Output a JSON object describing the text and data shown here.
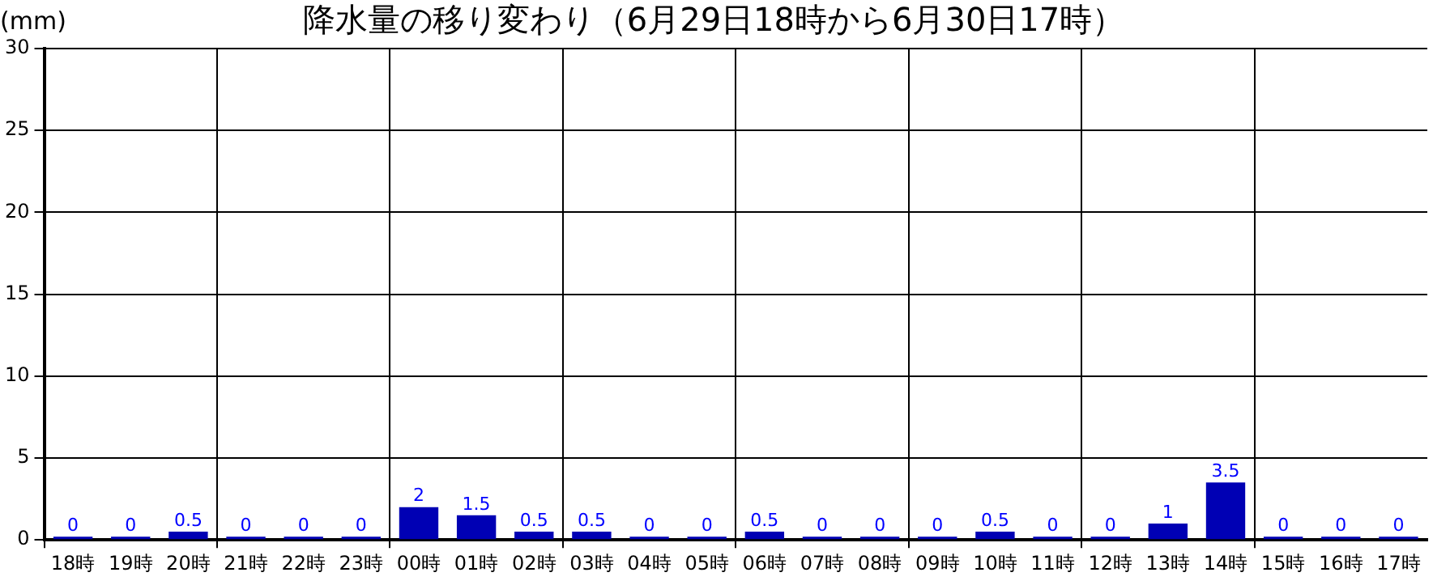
{
  "chart_data": {
    "type": "bar",
    "title": "降水量の移り変わり（6月29日18時から6月30日17時）",
    "ylabel": "(mm)",
    "categories": [
      "18時",
      "19時",
      "20時",
      "21時",
      "22時",
      "23時",
      "00時",
      "01時",
      "02時",
      "03時",
      "04時",
      "05時",
      "06時",
      "07時",
      "08時",
      "09時",
      "10時",
      "11時",
      "12時",
      "13時",
      "14時",
      "15時",
      "16時",
      "17時"
    ],
    "values": [
      0,
      0,
      0.5,
      0,
      0,
      0,
      2,
      1.5,
      0.5,
      0.5,
      0,
      0,
      0.5,
      0,
      0,
      0,
      0.5,
      0,
      0,
      1,
      3.5,
      0,
      0,
      0
    ],
    "color": "#0000b4",
    "ylim": [
      0,
      30
    ],
    "yticks": [
      0,
      5,
      10,
      15,
      20,
      25,
      30
    ],
    "grid": true,
    "data_labels": true
  }
}
